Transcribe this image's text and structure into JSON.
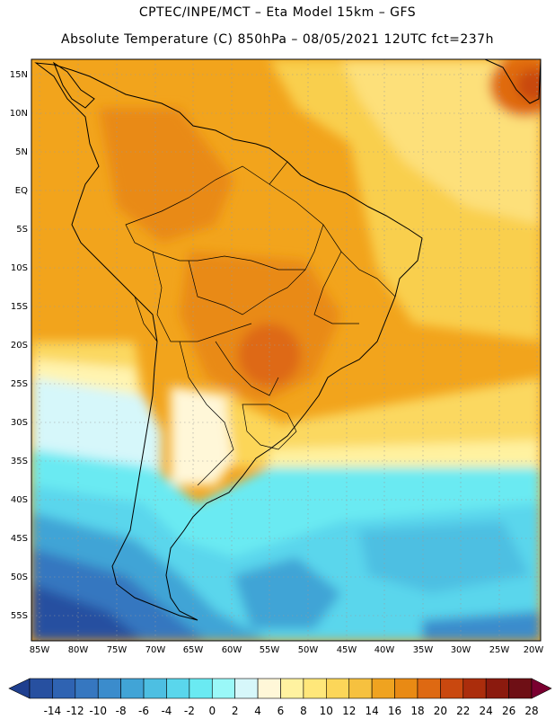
{
  "header": {
    "line1": "CPTEC/INPE/MCT –   Eta Model 15km – GFS",
    "line2": "Absolute Temperature (C) 850hPa – 08/05/2021 12UTC fct=237h"
  },
  "map": {
    "lat_labels": [
      "15N",
      "10N",
      "5N",
      "EQ",
      "5S",
      "10S",
      "15S",
      "20S",
      "25S",
      "30S",
      "35S",
      "40S",
      "45S",
      "50S",
      "55S"
    ],
    "lon_labels": [
      "85W",
      "80W",
      "75W",
      "70W",
      "65W",
      "60W",
      "55W",
      "50W",
      "45W",
      "40W",
      "35W",
      "30W",
      "25W",
      "20W"
    ]
  },
  "colorbar": {
    "labels": [
      "-14",
      "-12",
      "-10",
      "-8",
      "-6",
      "-4",
      "-2",
      "0",
      "2",
      "4",
      "6",
      "8",
      "10",
      "12",
      "14",
      "16",
      "18",
      "20",
      "22",
      "24",
      "26",
      "28"
    ],
    "colors": [
      "#1f3f8f",
      "#2750a0",
      "#2f63b2",
      "#3677c0",
      "#3b8ccc",
      "#41a4d6",
      "#4dbfe2",
      "#5ad6ec",
      "#6aeaf2",
      "#9af8f8",
      "#d6f7fa",
      "#fff7d8",
      "#fff2a0",
      "#ffe77a",
      "#fcd659",
      "#f6c13f",
      "#efa320",
      "#e98a14",
      "#de6912",
      "#c9480f",
      "#ab2d0c",
      "#8b1a0e",
      "#6e0f15",
      "#7a0030"
    ]
  }
}
